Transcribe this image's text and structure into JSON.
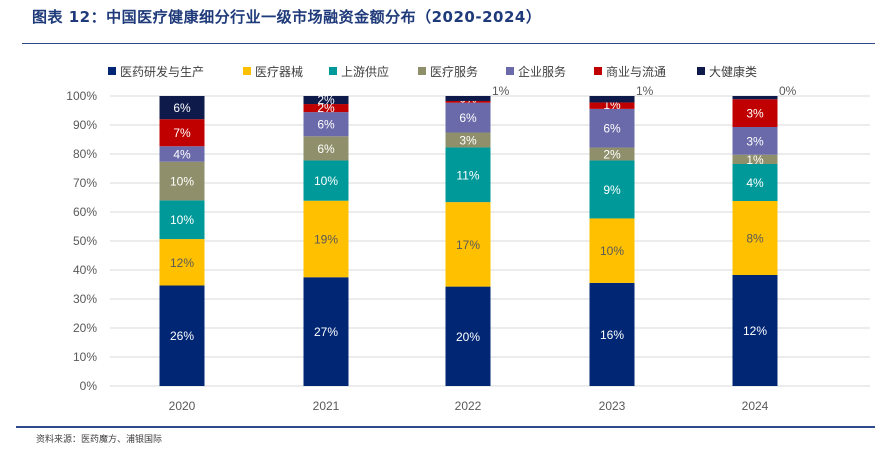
{
  "header": {
    "title": "图表 12：中国医疗健康细分行业一级市场融资金额分布（2020-2024）"
  },
  "footer": {
    "source": "资料来源：医药魔方、浦银国际"
  },
  "chart_data": {
    "type": "bar",
    "stacked": "percent",
    "title": "图表 12：中国医疗健康细分行业一级市场融资金额分布（2020-2024）",
    "xlabel": "",
    "ylabel": "",
    "ylim": [
      0,
      100
    ],
    "yticks": [
      "0%",
      "10%",
      "20%",
      "30%",
      "40%",
      "50%",
      "60%",
      "70%",
      "80%",
      "90%",
      "100%"
    ],
    "grid": true,
    "legend_position": "top",
    "categories": [
      "2020",
      "2021",
      "2022",
      "2023",
      "2024"
    ],
    "series": [
      {
        "name": "医药研发与生产",
        "color": "#012774",
        "label_color": "#ffffff",
        "values": [
          26,
          27,
          20,
          16,
          12
        ]
      },
      {
        "name": "医疗器械",
        "color": "#ffc000",
        "label_color": "#595959",
        "values": [
          12,
          19,
          17,
          10,
          8
        ]
      },
      {
        "name": "上游供应",
        "color": "#009999",
        "label_color": "#ffffff",
        "values": [
          10,
          10,
          11,
          9,
          4
        ]
      },
      {
        "name": "医疗服务",
        "color": "#8f8f6c",
        "label_color": "#ffffff",
        "values": [
          10,
          6,
          3,
          2,
          1
        ]
      },
      {
        "name": "企业服务",
        "color": "#6a6aaa",
        "label_color": "#ffffff",
        "values": [
          4,
          6,
          6,
          6,
          3
        ]
      },
      {
        "name": "商业与流通",
        "color": "#c00000",
        "label_color": "#ffffff",
        "values": [
          7,
          2,
          0,
          1,
          3
        ]
      },
      {
        "name": "大健康类",
        "color": "#0d1a4a",
        "label_color": "#ffffff",
        "values": [
          6,
          2,
          1,
          1,
          0
        ]
      }
    ],
    "data_labels": {
      "医药研发与生产": [
        "26%",
        "27%",
        "20%",
        "16%",
        "12%"
      ],
      "医疗器械": [
        "12%",
        "19%",
        "17%",
        "10%",
        "8%"
      ],
      "上游供应": [
        "10%",
        "10%",
        "11%",
        "9%",
        "4%"
      ],
      "医疗服务": [
        "10%",
        "6%",
        "3%",
        "2%",
        "1%"
      ],
      "企业服务": [
        "4%",
        "6%",
        "6%",
        "6%",
        "3%"
      ],
      "商业与流通": [
        "7%",
        "2%",
        "0%",
        "1%",
        "3%"
      ],
      "大健康类": [
        "6%",
        "2%",
        "1%",
        "1%",
        "0%"
      ]
    }
  }
}
